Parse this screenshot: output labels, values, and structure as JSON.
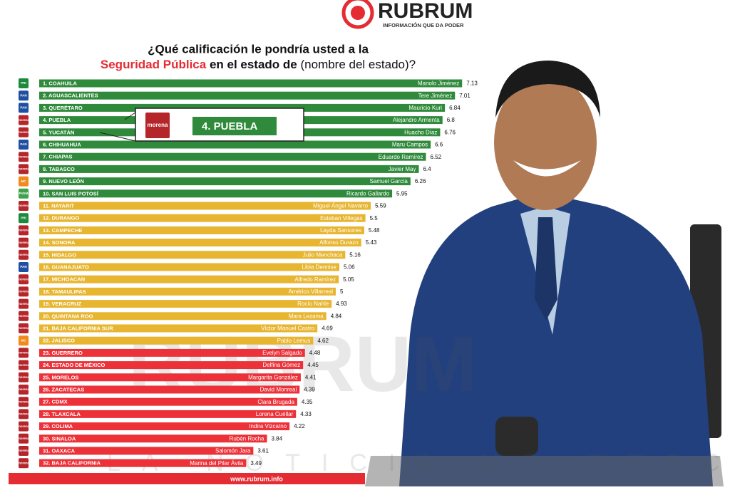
{
  "header": {
    "brand": "RUBRUM",
    "tagline": "INFORMACIÓN QUE DA PODER"
  },
  "chart_data": {
    "type": "bar",
    "orientation": "horizontal",
    "title_line1": "¿Qué calificación le pondría usted a la",
    "title_highlight": "Seguridad Pública",
    "title_middle": "en el estado de",
    "title_end": "(nombre del estado)?",
    "categories": [
      "1. COAHUILA",
      "2. AGUASCALIENTES",
      "3. QUERÉTARO",
      "4. PUEBLA",
      "5. YUCATÁN",
      "6. CHIHUAHUA",
      "7. CHIAPAS",
      "8. TABASCO",
      "9. NUEVO LEÓN",
      "10. SAN LUIS POTOSÍ",
      "11. NAYARIT",
      "12. DURANGO",
      "13. CAMPECHE",
      "14. SONORA",
      "15. HIDALGO",
      "16. GUANAJUATO",
      "17. MICHOACAN",
      "18. TAMAULIPAS",
      "19. VERACRUZ",
      "20. QUINTANA ROO",
      "21. BAJA CALIFORNIA SUR",
      "22. JALISCO",
      "23. GUERRERO",
      "24. ESTADO DE MÉXICO",
      "25. MORELOS",
      "26. ZACATECAS",
      "27. CDMX",
      "28. TLAXCALA",
      "29. COLIMA",
      "30. SINALOA",
      "31. OAXACA",
      "32. BAJA CALIFORNIA"
    ],
    "governors": [
      "Manolo Jiménez",
      "Tere Jiménez",
      "Mauricio Kuri",
      "Alejandro Armenta",
      "Huacho Díaz",
      "Maru Campos",
      "Eduardo Ramírez",
      "Javier May",
      "Samuel García",
      "Ricardo Gallardo",
      "Miguel Ángel Navarro",
      "Esteban Villegas",
      "Layda Sansores",
      "Alfonso Durazo",
      "Julio Menchaca",
      "Libia Dennise",
      "Alfredo Ramírez",
      "Américo Villarreal",
      "Rocío Nahle",
      "Mara Lezama",
      "Víctor Manuel Castro",
      "Pablo Lemus",
      "Evelyn Salgado",
      "Delfina Gómez",
      "Margarita González",
      "David Monreal",
      "Clara Brugada",
      "Lorena Cuéllar",
      "Indira Vizcaíno",
      "Rubén Rocha",
      "Salomón Jara",
      "Marina del Pilar Ávila"
    ],
    "parties": [
      "PRI",
      "PAN",
      "PAN",
      "morena",
      "morena",
      "PAN",
      "morena",
      "morena",
      "MC",
      "PVEM",
      "morena",
      "PRI",
      "morena",
      "morena",
      "morena",
      "PAN",
      "morena",
      "morena",
      "morena",
      "morena",
      "morena",
      "MC",
      "morena",
      "morena",
      "morena",
      "morena",
      "morena",
      "morena",
      "morena",
      "morena",
      "morena",
      "morena"
    ],
    "party_colors": {
      "PRI": "#1c8a3c",
      "PAN": "#1f4fa0",
      "morena": "#b5262b",
      "MC": "#f08a1c",
      "PVEM": "#3fa34d"
    },
    "values": [
      7.13,
      7.01,
      6.84,
      6.8,
      6.76,
      6.6,
      6.52,
      6.4,
      6.26,
      5.95,
      5.59,
      5.5,
      5.48,
      5.43,
      5.16,
      5.06,
      5.05,
      5,
      4.93,
      4.84,
      4.69,
      4.62,
      4.48,
      4.45,
      4.41,
      4.39,
      4.35,
      4.33,
      4.22,
      3.84,
      3.61,
      3.49
    ],
    "colors": [
      "#2f8a3b",
      "#2f8a3b",
      "#2f8a3b",
      "#2f8a3b",
      "#2f8a3b",
      "#2f8a3b",
      "#2f8a3b",
      "#2f8a3b",
      "#2f8a3b",
      "#2f8a3b",
      "#e7b52f",
      "#e7b52f",
      "#e7b52f",
      "#e7b52f",
      "#e7b52f",
      "#e7b52f",
      "#e7b52f",
      "#e7b52f",
      "#e7b52f",
      "#e7b52f",
      "#e7b52f",
      "#e7b52f",
      "#ec3138",
      "#ec3138",
      "#ec3138",
      "#ec3138",
      "#ec3138",
      "#ec3138",
      "#ec3138",
      "#ec3138",
      "#ec3138",
      "#ec3138"
    ],
    "callout": {
      "logo": "morena",
      "label": "4. PUEBLA"
    }
  },
  "watermark": {
    "brand": "RUBRUM",
    "slogan": "LA NOTICIA NO DESCANSA"
  },
  "footer": {
    "url": "www.rubrum.info"
  }
}
